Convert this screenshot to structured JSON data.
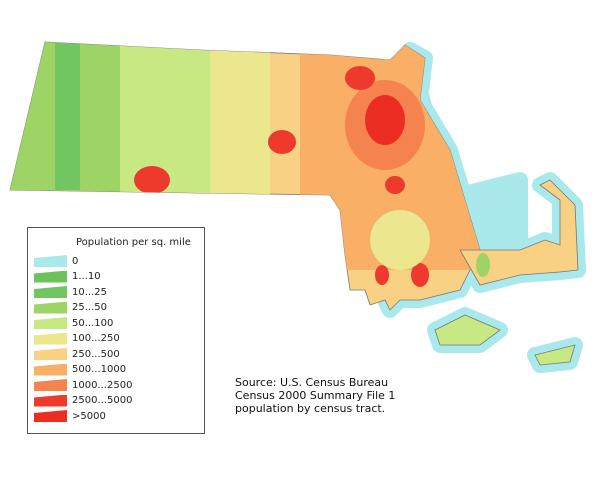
{
  "legend": {
    "title": "Population per sq. mile",
    "items": [
      {
        "label": "0",
        "color": "#a9e9ec"
      },
      {
        "label": "1...10",
        "color": "#6cc35c"
      },
      {
        "label": "10...25",
        "color": "#72c662"
      },
      {
        "label": "25...50",
        "color": "#9ed466"
      },
      {
        "label": "50...100",
        "color": "#c8e883"
      },
      {
        "label": "100...250",
        "color": "#eae78e"
      },
      {
        "label": "250...500",
        "color": "#f8d184"
      },
      {
        "label": "500...1000",
        "color": "#f9b066"
      },
      {
        "label": "1000...2500",
        "color": "#f5834f"
      },
      {
        "label": "2500...5000",
        "color": "#ee3a2c"
      },
      {
        "label": ">5000",
        "color": "#ec2d24"
      }
    ]
  },
  "source": {
    "line1": "Source: U.S. Census Bureau",
    "line2": "Census 2000 Summary File 1",
    "line3": "population by census tract."
  }
}
